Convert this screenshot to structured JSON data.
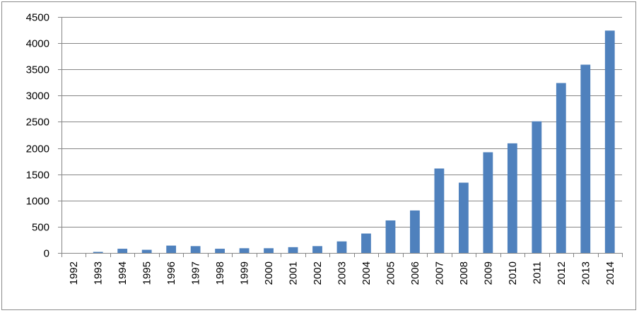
{
  "chart_data": {
    "type": "bar",
    "title": "",
    "xlabel": "",
    "ylabel": "",
    "categories": [
      "1992",
      "1993",
      "1994",
      "1995",
      "1996",
      "1997",
      "1998",
      "1999",
      "2000",
      "2001",
      "2002",
      "2003",
      "2004",
      "2005",
      "2006",
      "2007",
      "2008",
      "2009",
      "2010",
      "2011",
      "2012",
      "2013",
      "2014"
    ],
    "values": [
      0,
      20,
      80,
      60,
      140,
      130,
      80,
      90,
      90,
      110,
      130,
      220,
      370,
      620,
      810,
      1610,
      1340,
      1920,
      2090,
      2510,
      3240,
      3590,
      4240
    ],
    "ylim": [
      0,
      4500
    ],
    "yticks": [
      "0",
      "500",
      "1000",
      "1500",
      "2000",
      "2500",
      "3000",
      "3500",
      "4000",
      "4500"
    ],
    "grid": true,
    "legend": "none",
    "bar_color": "#4F81BD",
    "grid_color": "#868686"
  }
}
